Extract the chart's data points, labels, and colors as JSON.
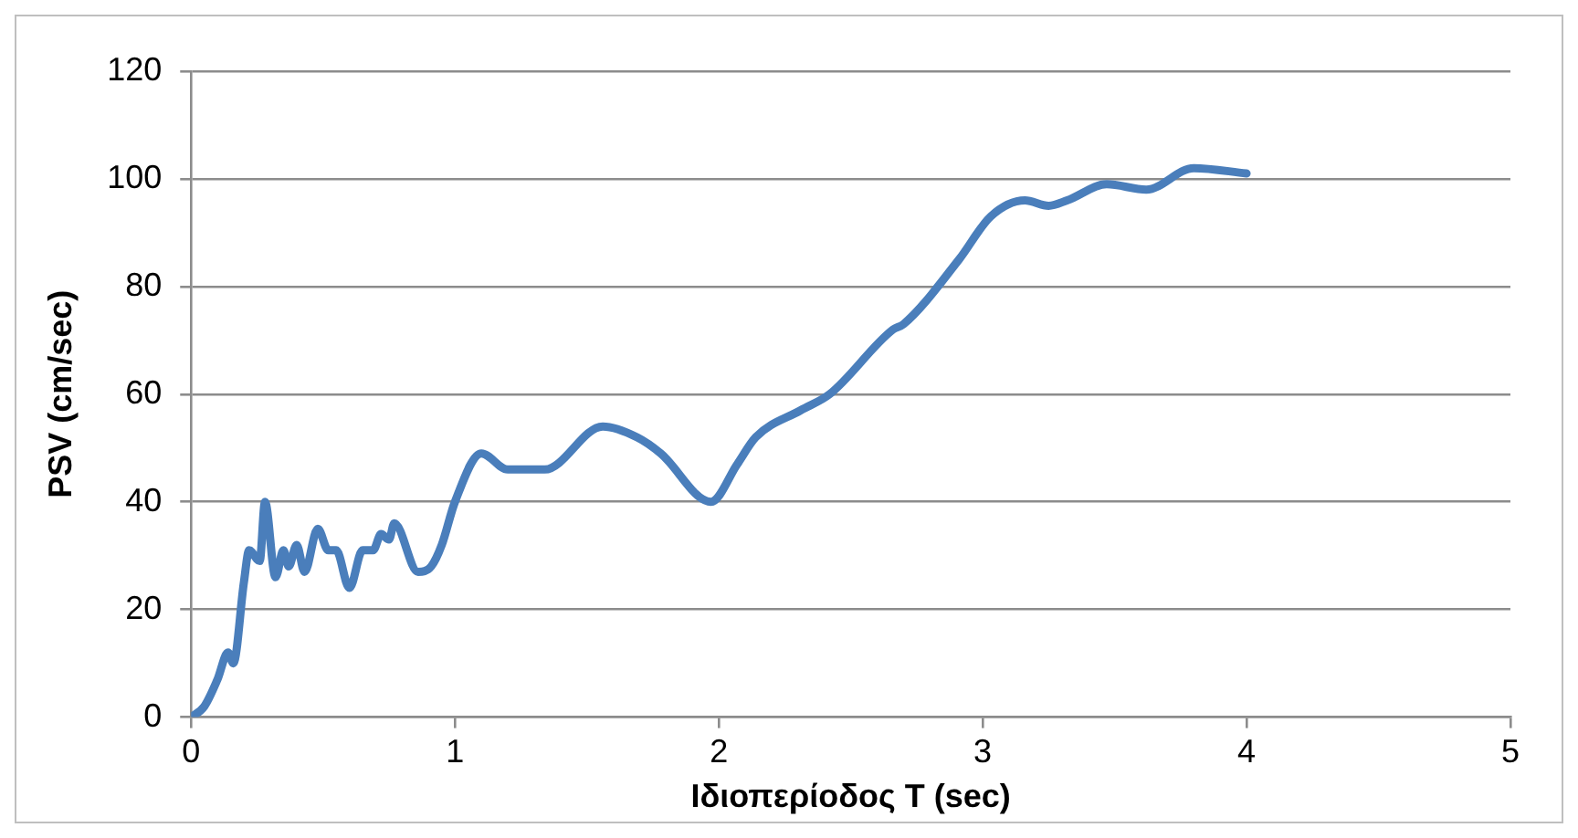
{
  "chart_data": {
    "type": "line",
    "xlabel": "Ιδιοπερίοδος T (sec)",
    "ylabel": "PSV (cm/sec)",
    "xlim": [
      0,
      5
    ],
    "xticks": [
      0,
      1,
      2,
      3,
      4,
      5
    ],
    "ylim": [
      0,
      120
    ],
    "yticks": [
      0,
      20,
      40,
      60,
      80,
      100,
      120
    ],
    "grid": "y",
    "legend": false,
    "marker": "none",
    "line_style": "solid",
    "series": [
      {
        "color": "#4a7ebb",
        "x": [
          0,
          0.05,
          0.1,
          0.14,
          0.16,
          0.2,
          0.22,
          0.26,
          0.28,
          0.32,
          0.35,
          0.37,
          0.4,
          0.43,
          0.48,
          0.52,
          0.55,
          0.6,
          0.65,
          0.69,
          0.72,
          0.75,
          0.77,
          0.86,
          0.91,
          0.95,
          1.0,
          1.1,
          1.2,
          1.34,
          1.56,
          1.69,
          1.78,
          1.97,
          2.07,
          2.14,
          2.31,
          2.42,
          2.66,
          2.7,
          2.91,
          3.03,
          3.16,
          3.25,
          3.32,
          3.47,
          3.62,
          3.8,
          4.0
        ],
        "values": [
          0,
          2,
          7,
          12,
          10,
          25,
          31,
          29,
          40,
          26,
          31,
          28,
          32,
          27,
          35,
          31,
          31,
          24,
          31,
          31,
          34,
          33,
          36,
          27,
          28,
          32,
          40,
          49,
          46,
          46,
          54,
          52,
          49,
          40,
          47,
          52,
          57,
          60,
          72,
          73,
          85,
          93,
          96,
          95,
          96,
          99,
          98,
          102,
          101
        ]
      }
    ]
  }
}
